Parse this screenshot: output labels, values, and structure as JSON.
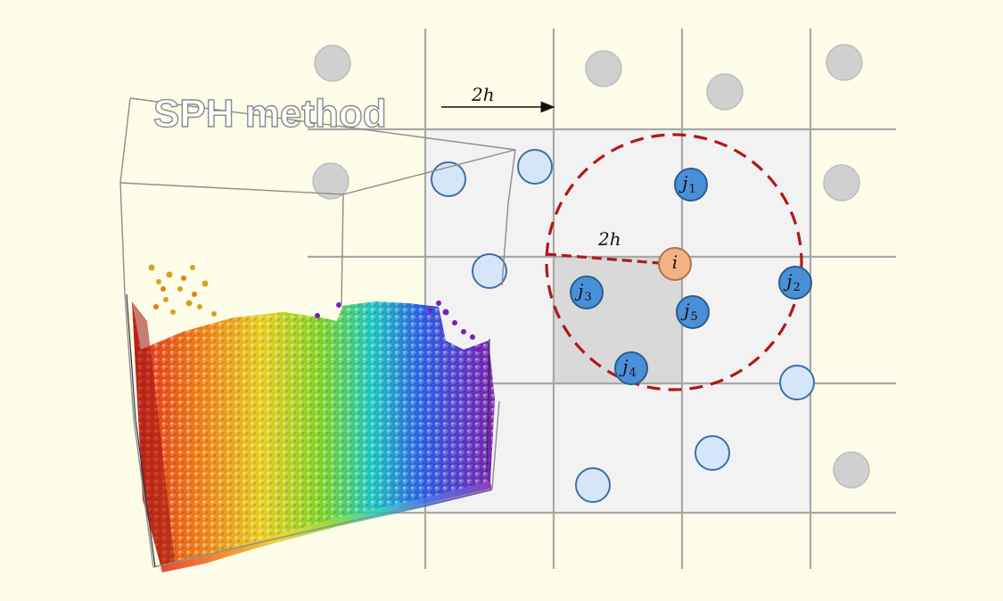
{
  "title": "SPH method",
  "spacing_label": "2h",
  "radius_label": "2h",
  "particle_i": {
    "base": "i",
    "sub": ""
  },
  "neighbors": [
    {
      "id": "j1",
      "base": "j",
      "sub": "1"
    },
    {
      "id": "j2",
      "base": "j",
      "sub": "2"
    },
    {
      "id": "j3",
      "base": "j",
      "sub": "3"
    },
    {
      "id": "j4",
      "base": "j",
      "sub": "4"
    },
    {
      "id": "j5",
      "base": "j",
      "sub": "5"
    }
  ],
  "colors": {
    "background": "#fefde9",
    "grid": "#a8a8a8",
    "search_region": "#f2f2f2",
    "home_cell": "#d9d9d9",
    "support_circle": "#b01818",
    "particle_i": "#f4b183",
    "neighbor": "#4a90d9",
    "near_candidate": "#d5e6f8",
    "far_particle": "#d0d0d0"
  }
}
